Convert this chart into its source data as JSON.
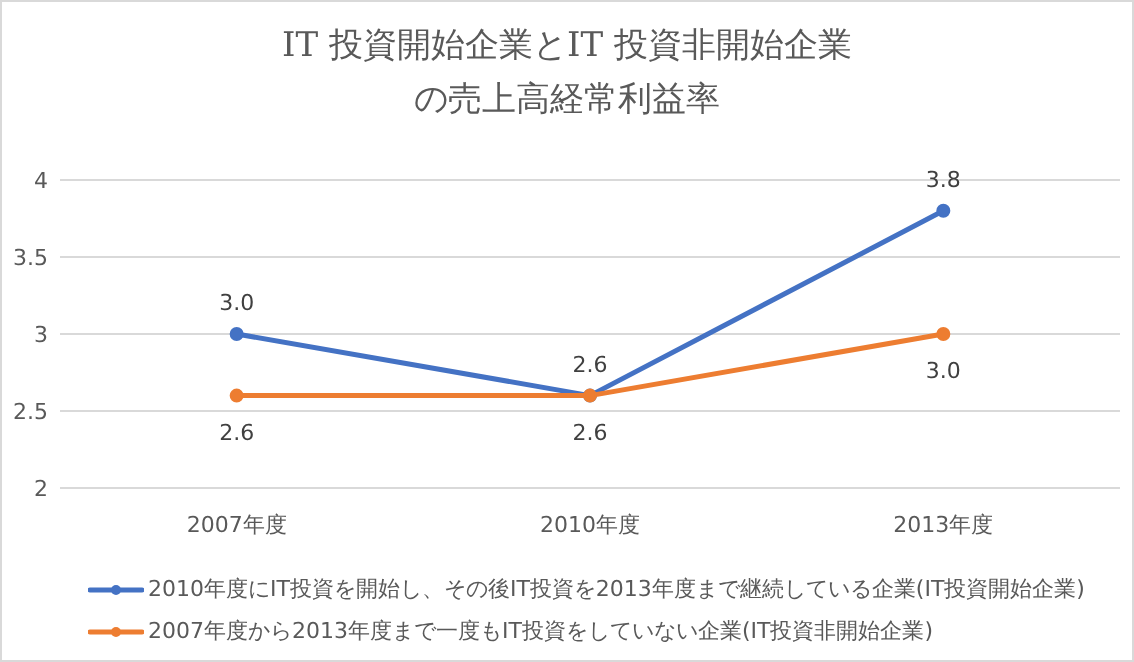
{
  "chart_data": {
    "type": "line",
    "title": "IT 投資開始企業とIT 投資非開始企業の売上高経常利益率",
    "categories": [
      "2007年度",
      "2010年度",
      "2013年度"
    ],
    "series": [
      {
        "name": "2010年度にIT投資を開始し、その後IT投資を2013年度まで継続している企業(IT投資開始企業)",
        "color": "#4472c4",
        "values": [
          3.0,
          2.6,
          3.8
        ],
        "value_labels": [
          "3.0",
          "2.6",
          "3.8"
        ]
      },
      {
        "name": "2007年度から2013年度まで一度もIT投資をしていない企業(IT投資非開始企業)",
        "color": "#ed7d31",
        "values": [
          2.6,
          2.6,
          3.0
        ],
        "value_labels": [
          "2.6",
          "2.6",
          "3.0"
        ]
      }
    ],
    "ylim": [
      2,
      4
    ],
    "yticks": [
      2,
      2.5,
      3,
      3.5,
      4
    ],
    "grid": "y",
    "legend": "bottom",
    "marker": "circle",
    "line_style": "solid"
  }
}
